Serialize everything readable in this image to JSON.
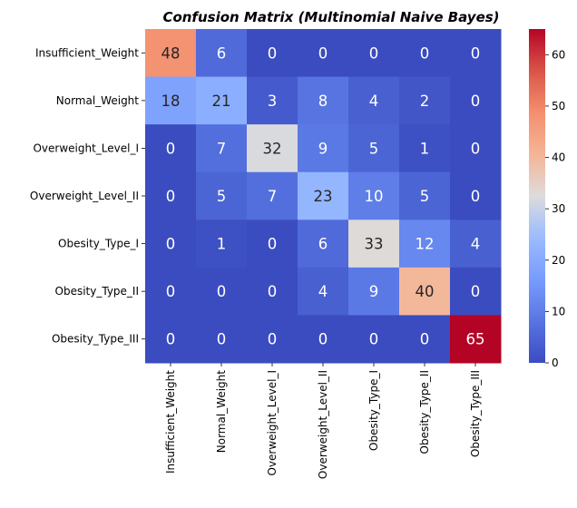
{
  "chart_data": {
    "type": "heatmap",
    "title": "Confusion Matrix (Multinomial Naive Bayes)",
    "xlabel": "",
    "ylabel": "",
    "row_labels": [
      "Insufficient_Weight",
      "Normal_Weight",
      "Overweight_Level_I",
      "Overweight_Level_II",
      "Obesity_Type_I",
      "Obesity_Type_II",
      "Obesity_Type_III"
    ],
    "col_labels": [
      "Insufficient_Weight",
      "Normal_Weight",
      "Overweight_Level_I",
      "Overweight_Level_II",
      "Obesity_Type_I",
      "Obesity_Type_II",
      "Obesity_Type_III"
    ],
    "values": [
      [
        48,
        6,
        0,
        0,
        0,
        0,
        0
      ],
      [
        18,
        21,
        3,
        8,
        4,
        2,
        0
      ],
      [
        0,
        7,
        32,
        9,
        5,
        1,
        0
      ],
      [
        0,
        5,
        7,
        23,
        10,
        5,
        0
      ],
      [
        0,
        1,
        0,
        6,
        33,
        12,
        4
      ],
      [
        0,
        0,
        0,
        4,
        9,
        40,
        0
      ],
      [
        0,
        0,
        0,
        0,
        0,
        0,
        65
      ]
    ],
    "colormap": "coolwarm",
    "colorbar": {
      "range": [
        0,
        65
      ],
      "ticks": [
        0,
        10,
        20,
        30,
        40,
        50,
        60
      ]
    }
  }
}
